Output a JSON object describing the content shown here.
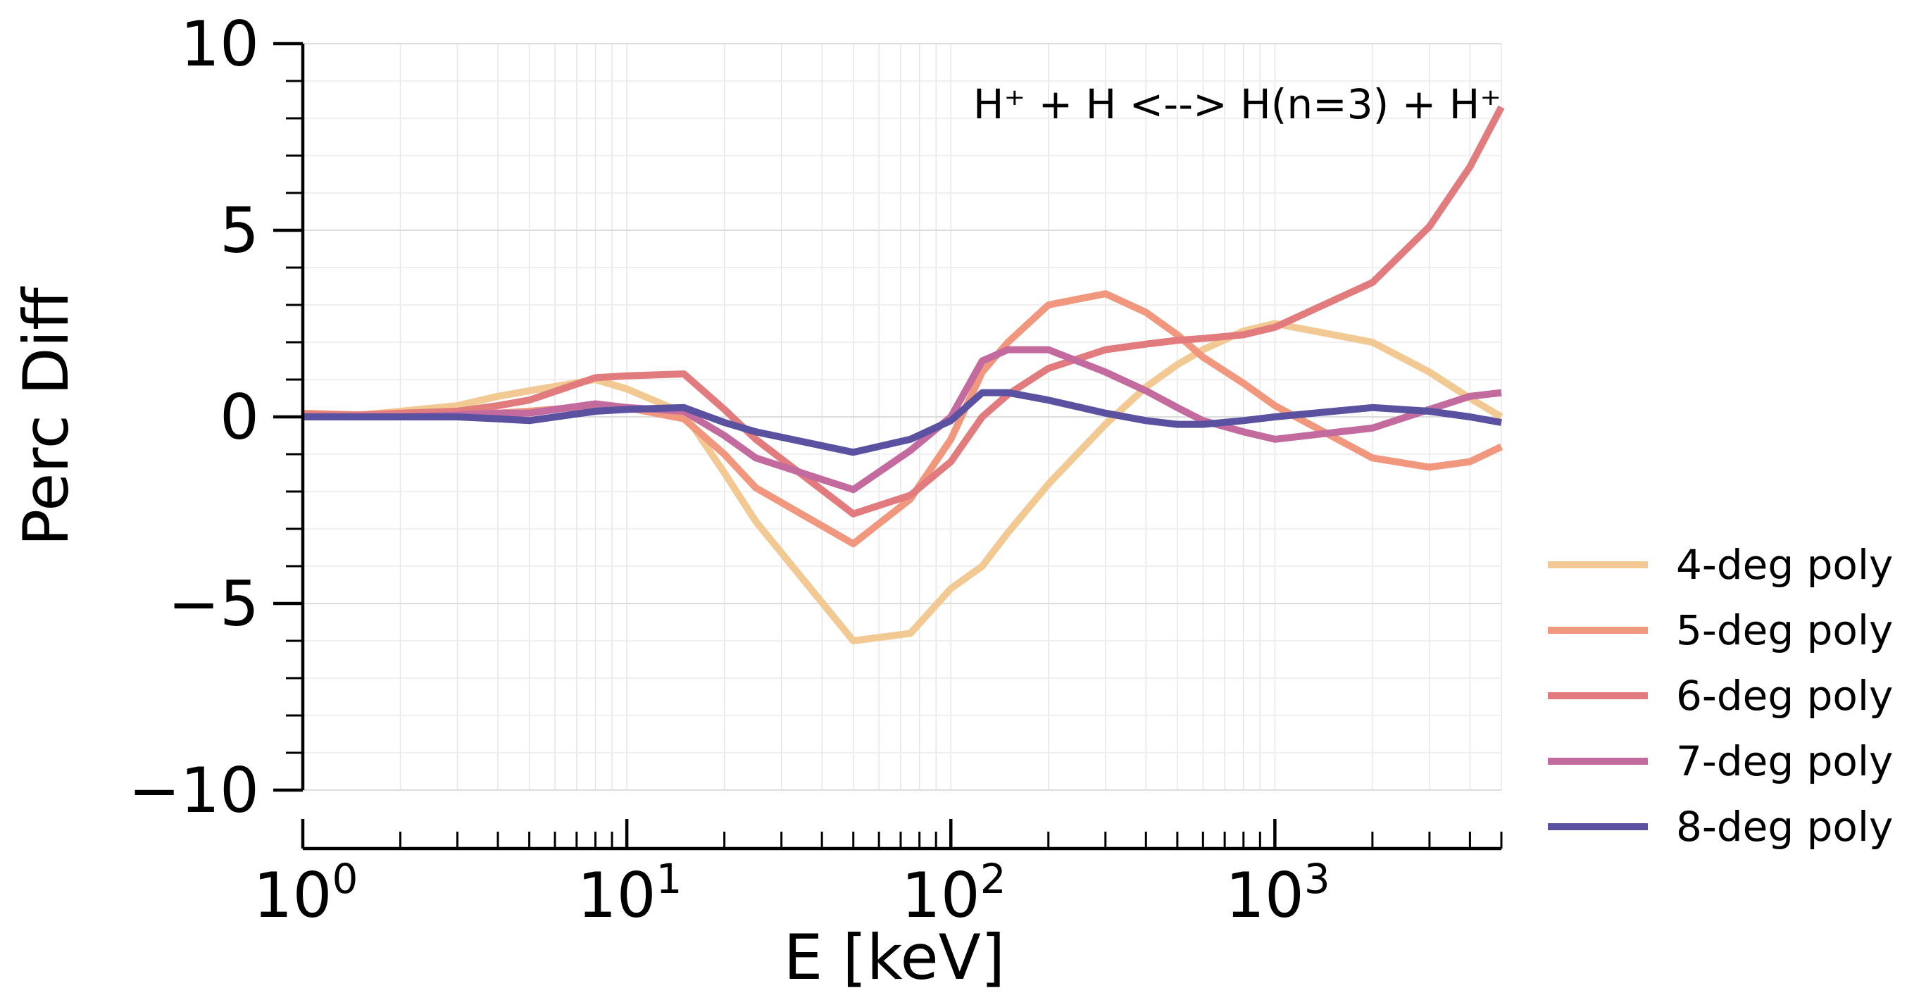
{
  "chart_data": {
    "type": "line",
    "xlabel": "E [keV]",
    "ylabel": "Perc Diff",
    "annotation": "H⁺ + H <--> H(n=3) + H⁺",
    "xscale": "log",
    "xlim": [
      1,
      5000
    ],
    "ylim": [
      -10,
      10
    ],
    "grid": true,
    "legend_position": "lower-right outside",
    "xticks": [
      {
        "value": 1,
        "base": "10",
        "exp": "0"
      },
      {
        "value": 10,
        "base": "10",
        "exp": "1"
      },
      {
        "value": 100,
        "base": "10",
        "exp": "2"
      },
      {
        "value": 1000,
        "base": "10",
        "exp": "3"
      }
    ],
    "yticks": [
      {
        "value": 10,
        "label": "10"
      },
      {
        "value": 5,
        "label": "5"
      },
      {
        "value": 0,
        "label": "0"
      },
      {
        "value": -5,
        "label": "−5"
      },
      {
        "value": -10,
        "label": "−10"
      }
    ],
    "x": [
      1,
      1.5,
      2,
      3,
      4,
      5,
      8,
      10,
      15,
      20,
      25,
      50,
      75,
      100,
      125,
      150,
      200,
      300,
      400,
      500,
      600,
      800,
      1000,
      2000,
      3000,
      4000,
      5000
    ],
    "series": [
      {
        "name": "4-deg poly",
        "color": "#f2c993",
        "values": [
          0.05,
          0.05,
          0.15,
          0.3,
          0.55,
          0.7,
          1.0,
          0.75,
          0.1,
          -1.5,
          -2.8,
          -6.0,
          -5.8,
          -4.6,
          -4.0,
          -3.1,
          -1.8,
          -0.2,
          0.8,
          1.4,
          1.8,
          2.3,
          2.5,
          2.0,
          1.2,
          0.5,
          0.0
        ]
      },
      {
        "name": "5-deg poly",
        "color": "#f0977e",
        "values": [
          0.1,
          0.05,
          0.05,
          0.1,
          0.1,
          0.15,
          0.3,
          0.25,
          -0.05,
          -1.0,
          -1.9,
          -3.4,
          -2.2,
          -0.6,
          1.2,
          2.0,
          3.0,
          3.3,
          2.8,
          2.2,
          1.6,
          0.9,
          0.3,
          -1.1,
          -1.35,
          -1.2,
          -0.8
        ]
      },
      {
        "name": "6-deg poly",
        "color": "#e17b7e",
        "values": [
          0.05,
          0.05,
          0.1,
          0.15,
          0.3,
          0.45,
          1.05,
          1.1,
          1.15,
          0.2,
          -0.6,
          -2.6,
          -2.1,
          -1.2,
          0.0,
          0.6,
          1.3,
          1.8,
          1.95,
          2.05,
          2.1,
          2.2,
          2.4,
          3.6,
          5.1,
          6.7,
          8.3
        ]
      },
      {
        "name": "7-deg poly",
        "color": "#c36a9e",
        "values": [
          0.0,
          0.0,
          0.0,
          0.05,
          0.1,
          0.1,
          0.35,
          0.25,
          0.15,
          -0.5,
          -1.1,
          -1.95,
          -0.9,
          0.0,
          1.5,
          1.8,
          1.8,
          1.2,
          0.7,
          0.25,
          -0.1,
          -0.4,
          -0.6,
          -0.3,
          0.2,
          0.55,
          0.65
        ]
      },
      {
        "name": "8-deg poly",
        "color": "#5a52a0",
        "values": [
          0.0,
          0.0,
          0.0,
          0.0,
          -0.05,
          -0.1,
          0.15,
          0.2,
          0.25,
          -0.15,
          -0.4,
          -0.95,
          -0.6,
          -0.1,
          0.65,
          0.65,
          0.45,
          0.1,
          -0.1,
          -0.2,
          -0.2,
          -0.1,
          0.0,
          0.25,
          0.15,
          0.0,
          -0.15
        ]
      }
    ]
  }
}
